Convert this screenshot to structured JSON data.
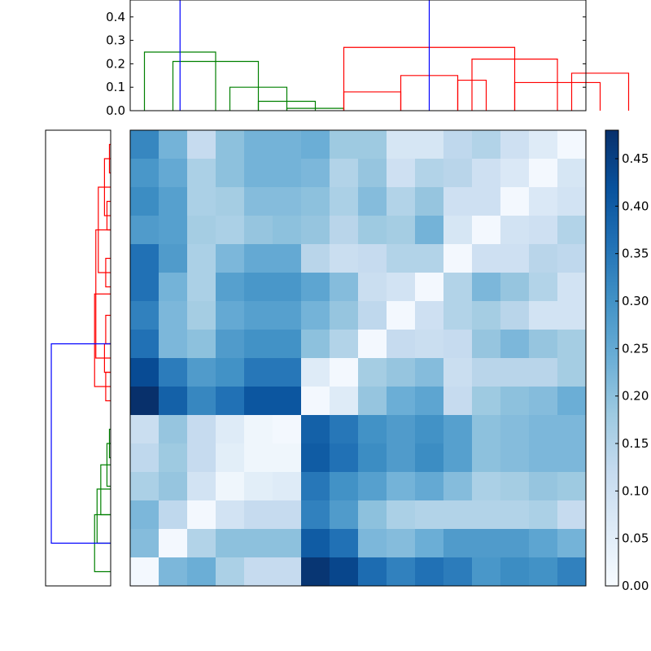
{
  "chart_data": {
    "type": "heatmap",
    "title": "",
    "xlabel": "",
    "ylabel": "",
    "grid": false,
    "colormap": "Blues",
    "colors": {
      "cmap_low": "#f7fbff",
      "cmap_high": "#08306b",
      "dendro_blue": "#0000ff",
      "dendro_green": "#008000",
      "dendro_red": "#ff0000"
    },
    "n_rows": 16,
    "n_cols": 16,
    "color_range": [
      0,
      0.48
    ],
    "colorbar_ticks": [
      "0.00",
      "0.05",
      "0.10",
      "0.15",
      "0.20",
      "0.25",
      "0.30",
      "0.35",
      "0.40",
      "0.45"
    ],
    "matrix": [
      [
        0.32,
        0.23,
        0.12,
        0.2,
        0.23,
        0.23,
        0.24,
        0.18,
        0.18,
        0.08,
        0.08,
        0.13,
        0.15,
        0.1,
        0.06,
        0.01
      ],
      [
        0.29,
        0.25,
        0.16,
        0.2,
        0.23,
        0.23,
        0.22,
        0.15,
        0.19,
        0.1,
        0.15,
        0.14,
        0.1,
        0.07,
        0.01,
        0.08
      ],
      [
        0.31,
        0.27,
        0.16,
        0.17,
        0.21,
        0.21,
        0.2,
        0.16,
        0.21,
        0.15,
        0.19,
        0.1,
        0.1,
        0.01,
        0.07,
        0.09
      ],
      [
        0.28,
        0.27,
        0.17,
        0.16,
        0.19,
        0.2,
        0.19,
        0.14,
        0.18,
        0.17,
        0.23,
        0.08,
        0.01,
        0.09,
        0.1,
        0.15
      ],
      [
        0.36,
        0.28,
        0.16,
        0.22,
        0.25,
        0.25,
        0.14,
        0.11,
        0.12,
        0.15,
        0.15,
        0.01,
        0.1,
        0.1,
        0.14,
        0.13
      ],
      [
        0.36,
        0.23,
        0.16,
        0.27,
        0.29,
        0.29,
        0.26,
        0.21,
        0.11,
        0.09,
        0.01,
        0.15,
        0.22,
        0.19,
        0.15,
        0.09
      ],
      [
        0.33,
        0.22,
        0.17,
        0.25,
        0.27,
        0.27,
        0.23,
        0.19,
        0.13,
        0.01,
        0.1,
        0.15,
        0.17,
        0.14,
        0.09,
        0.09
      ],
      [
        0.36,
        0.22,
        0.2,
        0.28,
        0.3,
        0.3,
        0.2,
        0.15,
        0.01,
        0.12,
        0.11,
        0.12,
        0.19,
        0.22,
        0.19,
        0.17
      ],
      [
        0.43,
        0.34,
        0.28,
        0.3,
        0.35,
        0.35,
        0.06,
        0.01,
        0.17,
        0.19,
        0.21,
        0.11,
        0.14,
        0.14,
        0.14,
        0.17
      ],
      [
        0.48,
        0.39,
        0.32,
        0.36,
        0.41,
        0.41,
        0.01,
        0.06,
        0.19,
        0.24,
        0.26,
        0.12,
        0.18,
        0.2,
        0.21,
        0.24
      ],
      [
        0.11,
        0.19,
        0.12,
        0.06,
        0.02,
        0.01,
        0.39,
        0.35,
        0.3,
        0.28,
        0.3,
        0.27,
        0.2,
        0.21,
        0.22,
        0.22
      ],
      [
        0.13,
        0.18,
        0.12,
        0.05,
        0.02,
        0.02,
        0.4,
        0.36,
        0.31,
        0.28,
        0.31,
        0.27,
        0.2,
        0.21,
        0.22,
        0.22
      ],
      [
        0.16,
        0.19,
        0.09,
        0.02,
        0.05,
        0.06,
        0.35,
        0.3,
        0.27,
        0.23,
        0.25,
        0.21,
        0.16,
        0.17,
        0.19,
        0.18
      ],
      [
        0.22,
        0.13,
        0.01,
        0.09,
        0.12,
        0.12,
        0.33,
        0.28,
        0.2,
        0.16,
        0.15,
        0.15,
        0.15,
        0.15,
        0.16,
        0.12
      ],
      [
        0.21,
        0.01,
        0.15,
        0.2,
        0.2,
        0.2,
        0.4,
        0.36,
        0.22,
        0.21,
        0.24,
        0.28,
        0.28,
        0.28,
        0.26,
        0.23
      ],
      [
        0.01,
        0.22,
        0.24,
        0.16,
        0.12,
        0.12,
        0.47,
        0.44,
        0.37,
        0.33,
        0.36,
        0.34,
        0.29,
        0.31,
        0.3,
        0.33
      ]
    ],
    "top_dendrogram": {
      "y_ticks": [
        "0.0",
        "0.1",
        "0.2",
        "0.3",
        "0.4",
        "0.5"
      ],
      "ylim": [
        0,
        0.5
      ],
      "links": [
        {
          "x": [
            1,
            3
          ],
          "y": [
            0.01,
            0.01
          ],
          "color": "green"
        },
        {
          "x": [
            0,
            2
          ],
          "y": [
            0.04,
            0.04
          ],
          "color": "green"
        },
        {
          "x": [
            -1,
            1
          ],
          "y": [
            0.1,
            0.1
          ],
          "color": "green"
        },
        {
          "x": [
            -3,
            0
          ],
          "y": [
            0.21,
            0.21
          ],
          "color": "green"
        },
        {
          "x": [
            -4,
            -1.5
          ],
          "y": [
            0.25,
            0.25
          ],
          "color": "green"
        },
        {
          "x": [
            3,
            5
          ],
          "y": [
            0.08,
            0.08
          ],
          "color": "red"
        },
        {
          "x": [
            5,
            7
          ],
          "y": [
            0.15,
            0.15
          ],
          "color": "red"
        },
        {
          "x": [
            8,
            7
          ],
          "y": [
            0.13,
            0.13
          ],
          "color": "red"
        },
        {
          "x": [
            11,
            13
          ],
          "y": [
            0.16,
            0.16
          ],
          "color": "red"
        },
        {
          "x": [
            9,
            12
          ],
          "y": [
            0.12,
            0.12
          ],
          "color": "red"
        },
        {
          "x": [
            7.5,
            10.5
          ],
          "y": [
            0.22,
            0.22
          ],
          "color": "red"
        },
        {
          "x": [
            3,
            9
          ],
          "y": [
            0.27,
            0.27
          ],
          "color": "red"
        },
        {
          "x": [
            -2.75,
            6
          ],
          "y": [
            0.48,
            0.48
          ],
          "color": "blue"
        }
      ]
    },
    "left_dendrogram": {
      "links": [
        {
          "y": [
            0,
            1
          ],
          "x": [
            0.01,
            0.01
          ],
          "color": "red"
        },
        {
          "y": [
            2,
            3
          ],
          "x": [
            0.03,
            0.03
          ],
          "color": "red"
        },
        {
          "y": [
            0.5,
            2.5
          ],
          "x": [
            0.05,
            0.05
          ],
          "color": "red"
        },
        {
          "y": [
            4,
            5
          ],
          "x": [
            0.04,
            0.04
          ],
          "color": "red"
        },
        {
          "y": [
            1.5,
            4.5
          ],
          "x": [
            0.1,
            0.1
          ],
          "color": "red"
        },
        {
          "y": [
            6,
            7
          ],
          "x": [
            0.04,
            0.04
          ],
          "color": "red"
        },
        {
          "y": [
            7,
            8
          ],
          "x": [
            0.05,
            0.05
          ],
          "color": "red"
        },
        {
          "y": [
            3,
            7.5
          ],
          "x": [
            0.12,
            0.12
          ],
          "color": "red"
        },
        {
          "y": [
            8,
            9
          ],
          "x": [
            0.04,
            0.04
          ],
          "color": "red"
        },
        {
          "y": [
            5.25,
            8.5
          ],
          "x": [
            0.13,
            0.13
          ],
          "color": "red"
        },
        {
          "y": [
            10,
            11
          ],
          "x": [
            0.01,
            0.01
          ],
          "color": "green"
        },
        {
          "y": [
            10.5,
            12
          ],
          "x": [
            0.03,
            0.03
          ],
          "color": "green"
        },
        {
          "y": [
            11.25,
            13
          ],
          "x": [
            0.08,
            0.08
          ],
          "color": "green"
        },
        {
          "y": [
            12.1,
            14
          ],
          "x": [
            0.11,
            0.11
          ],
          "color": "green"
        },
        {
          "y": [
            13,
            15
          ],
          "x": [
            0.13,
            0.13
          ],
          "color": "green"
        },
        {
          "y": [
            7,
            14
          ],
          "x": [
            0.48,
            0.48
          ],
          "color": "blue"
        }
      ]
    }
  }
}
